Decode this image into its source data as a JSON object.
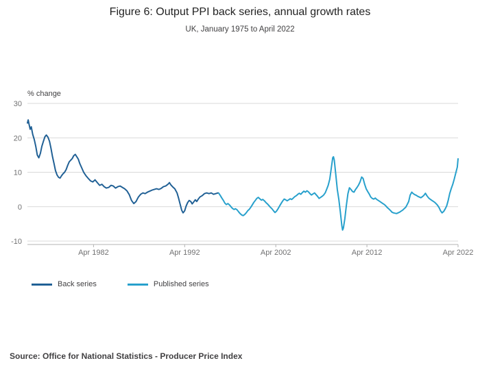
{
  "header": {
    "title": "Figure 6: Output PPI back series, annual growth rates",
    "subtitle": "UK, January 1975 to April 2022"
  },
  "source": "Source: Office for National Statistics - Producer Price Index",
  "colors": {
    "back_series": "#206095",
    "published_series": "#27A0CC",
    "grid": "#d9d9d9",
    "axis": "#b3b3b3",
    "tick_text": "#707071"
  },
  "chart_data": {
    "type": "line",
    "title": "Figure 6: Output PPI back series, annual growth rates",
    "subtitle": "UK, January 1975 to April 2022",
    "ylabel": "% change",
    "xlabel": "",
    "xlim": [
      1975.0,
      2022.25
    ],
    "ylim": [
      -10,
      30
    ],
    "grid": true,
    "legend_position": "bottom",
    "y_ticks": [
      30,
      20,
      10,
      0,
      -10
    ],
    "x_ticks": [
      {
        "label": "Apr 1982",
        "year": 1982.25
      },
      {
        "label": "Apr 1992",
        "year": 1992.25
      },
      {
        "label": "Apr 2002",
        "year": 2002.25
      },
      {
        "label": "Apr 2012",
        "year": 2012.25
      },
      {
        "label": "Apr 2022",
        "year": 2022.25
      }
    ],
    "series": [
      {
        "name": "Back series",
        "color": "#206095",
        "points": [
          [
            1975.0,
            24.3
          ],
          [
            1975.08,
            25.2
          ],
          [
            1975.17,
            24.0
          ],
          [
            1975.3,
            22.5
          ],
          [
            1975.42,
            23.2
          ],
          [
            1975.58,
            21.0
          ],
          [
            1975.75,
            19.5
          ],
          [
            1975.92,
            17.5
          ],
          [
            1976.08,
            15.0
          ],
          [
            1976.25,
            14.2
          ],
          [
            1976.42,
            15.5
          ],
          [
            1976.58,
            17.5
          ],
          [
            1976.75,
            19.0
          ],
          [
            1976.92,
            20.3
          ],
          [
            1977.08,
            20.8
          ],
          [
            1977.25,
            20.2
          ],
          [
            1977.42,
            19.0
          ],
          [
            1977.58,
            17.0
          ],
          [
            1977.75,
            14.5
          ],
          [
            1977.92,
            12.5
          ],
          [
            1978.08,
            10.5
          ],
          [
            1978.25,
            9.2
          ],
          [
            1978.42,
            8.5
          ],
          [
            1978.58,
            8.3
          ],
          [
            1978.75,
            9.0
          ],
          [
            1978.92,
            9.6
          ],
          [
            1979.08,
            10.0
          ],
          [
            1979.25,
            10.8
          ],
          [
            1979.42,
            12.0
          ],
          [
            1979.58,
            13.0
          ],
          [
            1979.75,
            13.5
          ],
          [
            1979.92,
            14.0
          ],
          [
            1980.08,
            14.8
          ],
          [
            1980.25,
            15.2
          ],
          [
            1980.42,
            14.5
          ],
          [
            1980.58,
            13.8
          ],
          [
            1980.75,
            12.5
          ],
          [
            1980.92,
            11.5
          ],
          [
            1981.17,
            10.0
          ],
          [
            1981.42,
            9.0
          ],
          [
            1981.67,
            8.2
          ],
          [
            1981.92,
            7.5
          ],
          [
            1982.17,
            7.2
          ],
          [
            1982.42,
            7.8
          ],
          [
            1982.67,
            7.0
          ],
          [
            1982.92,
            6.2
          ],
          [
            1983.17,
            6.5
          ],
          [
            1983.42,
            5.8
          ],
          [
            1983.67,
            5.4
          ],
          [
            1983.92,
            5.6
          ],
          [
            1984.17,
            6.2
          ],
          [
            1984.42,
            6.0
          ],
          [
            1984.67,
            5.4
          ],
          [
            1984.92,
            5.8
          ],
          [
            1985.17,
            6.0
          ],
          [
            1985.42,
            5.6
          ],
          [
            1985.67,
            5.2
          ],
          [
            1985.92,
            4.6
          ],
          [
            1986.17,
            3.5
          ],
          [
            1986.42,
            1.8
          ],
          [
            1986.67,
            0.9
          ],
          [
            1986.92,
            1.5
          ],
          [
            1987.17,
            2.8
          ],
          [
            1987.42,
            3.6
          ],
          [
            1987.67,
            4.0
          ],
          [
            1987.92,
            3.8
          ],
          [
            1988.17,
            4.2
          ],
          [
            1988.42,
            4.5
          ],
          [
            1988.67,
            4.8
          ],
          [
            1988.92,
            5.0
          ],
          [
            1989.17,
            5.2
          ],
          [
            1989.42,
            5.0
          ],
          [
            1989.67,
            5.3
          ],
          [
            1989.92,
            5.8
          ],
          [
            1990.17,
            6.0
          ],
          [
            1990.42,
            6.5
          ],
          [
            1990.58,
            7.0
          ],
          [
            1990.75,
            6.3
          ],
          [
            1990.92,
            5.8
          ],
          [
            1991.17,
            5.2
          ],
          [
            1991.42,
            4.0
          ],
          [
            1991.58,
            2.5
          ],
          [
            1991.75,
            0.8
          ],
          [
            1991.92,
            -1.0
          ],
          [
            1992.08,
            -1.8
          ],
          [
            1992.25,
            -1.2
          ],
          [
            1992.42,
            0.2
          ],
          [
            1992.58,
            1.2
          ],
          [
            1992.75,
            1.8
          ],
          [
            1992.92,
            1.5
          ],
          [
            1993.08,
            0.8
          ],
          [
            1993.25,
            1.4
          ],
          [
            1993.42,
            2.0
          ],
          [
            1993.58,
            1.5
          ],
          [
            1993.75,
            2.2
          ],
          [
            1993.92,
            2.8
          ],
          [
            1994.17,
            3.2
          ],
          [
            1994.42,
            3.8
          ],
          [
            1994.67,
            4.0
          ],
          [
            1994.92,
            3.8
          ],
          [
            1995.17,
            4.0
          ],
          [
            1995.42,
            3.6
          ],
          [
            1995.67,
            3.8
          ],
          [
            1995.92,
            4.0
          ]
        ]
      },
      {
        "name": "Published series",
        "color": "#27A0CC",
        "points": [
          [
            1996.0,
            3.9
          ],
          [
            1996.17,
            3.2
          ],
          [
            1996.33,
            2.5
          ],
          [
            1996.5,
            1.8
          ],
          [
            1996.67,
            1.0
          ],
          [
            1996.83,
            0.6
          ],
          [
            1997.0,
            0.9
          ],
          [
            1997.17,
            0.5
          ],
          [
            1997.33,
            0.0
          ],
          [
            1997.5,
            -0.5
          ],
          [
            1997.67,
            -0.8
          ],
          [
            1997.83,
            -0.6
          ],
          [
            1998.0,
            -0.9
          ],
          [
            1998.17,
            -1.5
          ],
          [
            1998.33,
            -2.0
          ],
          [
            1998.5,
            -2.4
          ],
          [
            1998.67,
            -2.6
          ],
          [
            1998.83,
            -2.3
          ],
          [
            1999.0,
            -1.8
          ],
          [
            1999.17,
            -1.2
          ],
          [
            1999.33,
            -0.8
          ],
          [
            1999.5,
            -0.2
          ],
          [
            1999.67,
            0.5
          ],
          [
            1999.83,
            1.2
          ],
          [
            2000.0,
            1.8
          ],
          [
            2000.17,
            2.4
          ],
          [
            2000.33,
            2.7
          ],
          [
            2000.5,
            2.3
          ],
          [
            2000.67,
            1.9
          ],
          [
            2000.83,
            2.1
          ],
          [
            2001.0,
            1.7
          ],
          [
            2001.17,
            1.2
          ],
          [
            2001.33,
            0.8
          ],
          [
            2001.5,
            0.3
          ],
          [
            2001.67,
            -0.2
          ],
          [
            2001.83,
            -0.6
          ],
          [
            2002.0,
            -1.2
          ],
          [
            2002.17,
            -1.7
          ],
          [
            2002.33,
            -1.3
          ],
          [
            2002.5,
            -0.6
          ],
          [
            2002.67,
            0.2
          ],
          [
            2002.83,
            0.9
          ],
          [
            2003.0,
            1.6
          ],
          [
            2003.17,
            2.2
          ],
          [
            2003.33,
            2.0
          ],
          [
            2003.5,
            1.7
          ],
          [
            2003.67,
            2.0
          ],
          [
            2003.83,
            2.3
          ],
          [
            2004.0,
            2.1
          ],
          [
            2004.17,
            2.5
          ],
          [
            2004.33,
            2.9
          ],
          [
            2004.5,
            3.2
          ],
          [
            2004.67,
            3.6
          ],
          [
            2004.83,
            3.9
          ],
          [
            2005.0,
            3.6
          ],
          [
            2005.17,
            4.1
          ],
          [
            2005.33,
            4.5
          ],
          [
            2005.5,
            4.2
          ],
          [
            2005.67,
            4.6
          ],
          [
            2005.83,
            4.3
          ],
          [
            2006.0,
            3.8
          ],
          [
            2006.17,
            3.4
          ],
          [
            2006.33,
            3.7
          ],
          [
            2006.5,
            4.0
          ],
          [
            2006.67,
            3.5
          ],
          [
            2006.83,
            3.0
          ],
          [
            2007.0,
            2.4
          ],
          [
            2007.17,
            2.7
          ],
          [
            2007.33,
            3.0
          ],
          [
            2007.5,
            3.4
          ],
          [
            2007.67,
            4.0
          ],
          [
            2007.83,
            5.0
          ],
          [
            2008.0,
            6.2
          ],
          [
            2008.17,
            8.0
          ],
          [
            2008.33,
            11.0
          ],
          [
            2008.5,
            14.2
          ],
          [
            2008.58,
            14.5
          ],
          [
            2008.67,
            13.5
          ],
          [
            2008.83,
            9.5
          ],
          [
            2009.0,
            5.0
          ],
          [
            2009.17,
            2.0
          ],
          [
            2009.33,
            -1.5
          ],
          [
            2009.5,
            -5.5
          ],
          [
            2009.58,
            -6.8
          ],
          [
            2009.67,
            -6.2
          ],
          [
            2009.83,
            -3.5
          ],
          [
            2010.0,
            0.5
          ],
          [
            2010.17,
            3.8
          ],
          [
            2010.33,
            5.5
          ],
          [
            2010.5,
            5.0
          ],
          [
            2010.67,
            4.4
          ],
          [
            2010.83,
            4.2
          ],
          [
            2011.0,
            5.0
          ],
          [
            2011.17,
            5.6
          ],
          [
            2011.33,
            6.3
          ],
          [
            2011.5,
            7.2
          ],
          [
            2011.67,
            8.6
          ],
          [
            2011.83,
            8.2
          ],
          [
            2012.0,
            6.5
          ],
          [
            2012.17,
            5.2
          ],
          [
            2012.33,
            4.4
          ],
          [
            2012.5,
            3.7
          ],
          [
            2012.67,
            2.8
          ],
          [
            2012.83,
            2.4
          ],
          [
            2013.0,
            2.2
          ],
          [
            2013.17,
            2.5
          ],
          [
            2013.33,
            2.1
          ],
          [
            2013.5,
            1.8
          ],
          [
            2013.67,
            1.5
          ],
          [
            2013.83,
            1.2
          ],
          [
            2014.0,
            0.9
          ],
          [
            2014.17,
            0.6
          ],
          [
            2014.33,
            0.2
          ],
          [
            2014.5,
            -0.3
          ],
          [
            2014.67,
            -0.7
          ],
          [
            2014.83,
            -1.1
          ],
          [
            2015.0,
            -1.6
          ],
          [
            2015.17,
            -1.8
          ],
          [
            2015.33,
            -1.9
          ],
          [
            2015.5,
            -2.0
          ],
          [
            2015.67,
            -1.8
          ],
          [
            2015.83,
            -1.6
          ],
          [
            2016.0,
            -1.3
          ],
          [
            2016.17,
            -1.0
          ],
          [
            2016.33,
            -0.6
          ],
          [
            2016.5,
            -0.2
          ],
          [
            2016.67,
            0.6
          ],
          [
            2016.83,
            1.5
          ],
          [
            2017.0,
            3.4
          ],
          [
            2017.17,
            4.2
          ],
          [
            2017.33,
            3.8
          ],
          [
            2017.5,
            3.5
          ],
          [
            2017.67,
            3.3
          ],
          [
            2017.83,
            3.0
          ],
          [
            2018.0,
            2.8
          ],
          [
            2018.17,
            2.6
          ],
          [
            2018.33,
            2.9
          ],
          [
            2018.5,
            3.3
          ],
          [
            2018.67,
            3.9
          ],
          [
            2018.83,
            3.2
          ],
          [
            2019.0,
            2.6
          ],
          [
            2019.17,
            2.2
          ],
          [
            2019.33,
            1.9
          ],
          [
            2019.5,
            1.6
          ],
          [
            2019.67,
            1.3
          ],
          [
            2019.83,
            0.9
          ],
          [
            2020.0,
            0.4
          ],
          [
            2020.17,
            -0.3
          ],
          [
            2020.33,
            -1.2
          ],
          [
            2020.5,
            -1.8
          ],
          [
            2020.67,
            -1.4
          ],
          [
            2020.83,
            -0.7
          ],
          [
            2021.0,
            0.2
          ],
          [
            2021.17,
            1.8
          ],
          [
            2021.33,
            3.8
          ],
          [
            2021.5,
            5.2
          ],
          [
            2021.67,
            6.5
          ],
          [
            2021.83,
            8.0
          ],
          [
            2022.0,
            9.8
          ],
          [
            2022.17,
            11.5
          ],
          [
            2022.25,
            13.9
          ]
        ]
      }
    ]
  }
}
